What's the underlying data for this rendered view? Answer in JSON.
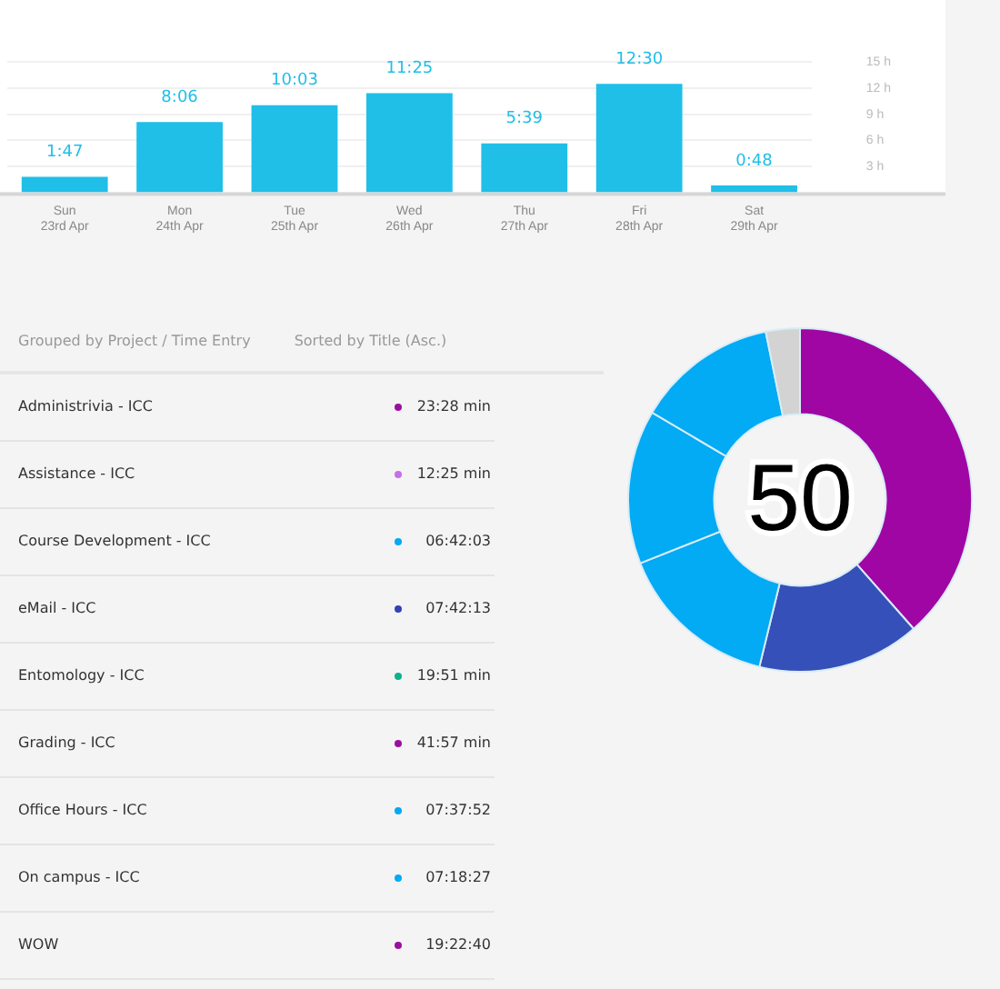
{
  "chart_data": [
    {
      "type": "bar",
      "categories": [
        "Sun\n23rd Apr",
        "Mon\n24th Apr",
        "Tue\n25th Apr",
        "Wed\n26th Apr",
        "Thu\n27th Apr",
        "Fri\n28th Apr",
        "Sat\n29th Apr"
      ],
      "values": [
        1.783,
        8.1,
        10.05,
        11.417,
        5.65,
        12.5,
        0.8
      ],
      "value_labels": [
        "1:47",
        "8:06",
        "10:03",
        "11:25",
        "5:39",
        "12:30",
        "0:48"
      ],
      "color": "#1fbfe8",
      "ylim": [
        0,
        15
      ],
      "yticks": [
        {
          "value": 3,
          "label": "3 h"
        },
        {
          "value": 6,
          "label": "6 h"
        },
        {
          "value": 9,
          "label": "9 h"
        },
        {
          "value": 12,
          "label": "12 h"
        },
        {
          "value": 15,
          "label": "15 h"
        }
      ],
      "grid": "y",
      "legend": false
    },
    {
      "type": "other",
      "annotations": [
        "Grouped by Project / Time Entry",
        "Sorted by Title (Asc.)"
      ],
      "categories": [
        "Administrivia - ICC",
        "Assistance - ICC",
        "Course Development - ICC",
        "eMail - ICC",
        "Entomology - ICC",
        "Grading - ICC",
        "Office Hours - ICC",
        "On campus - ICC",
        "WOW"
      ],
      "value_labels": [
        "23:28 min",
        "12:25 min",
        "06:42:03",
        "07:42:13",
        "19:51 min",
        "41:57 min",
        "07:37:52",
        "07:18:27",
        "19:22:40"
      ],
      "colors": [
        "#9c0f9e",
        "#c86ee8",
        "#03a9f4",
        "#3343b5",
        "#0fb08c",
        "#9c0f9e",
        "#03a9f4",
        "#03a9f4",
        "#9c0f9e"
      ]
    },
    {
      "type": "donut",
      "categories": [
        null,
        null,
        null,
        null,
        null,
        null
      ],
      "values": [
        38.5,
        15.3,
        15.2,
        14.5,
        13.3,
        3.2
      ],
      "colors": [
        "#a006a3",
        "#3550b8",
        "#03aaf4",
        "#03aaf4",
        "#03aaf4",
        "#d3d3d3"
      ],
      "annotations": [
        "50"
      ],
      "legend": false
    }
  ]
}
